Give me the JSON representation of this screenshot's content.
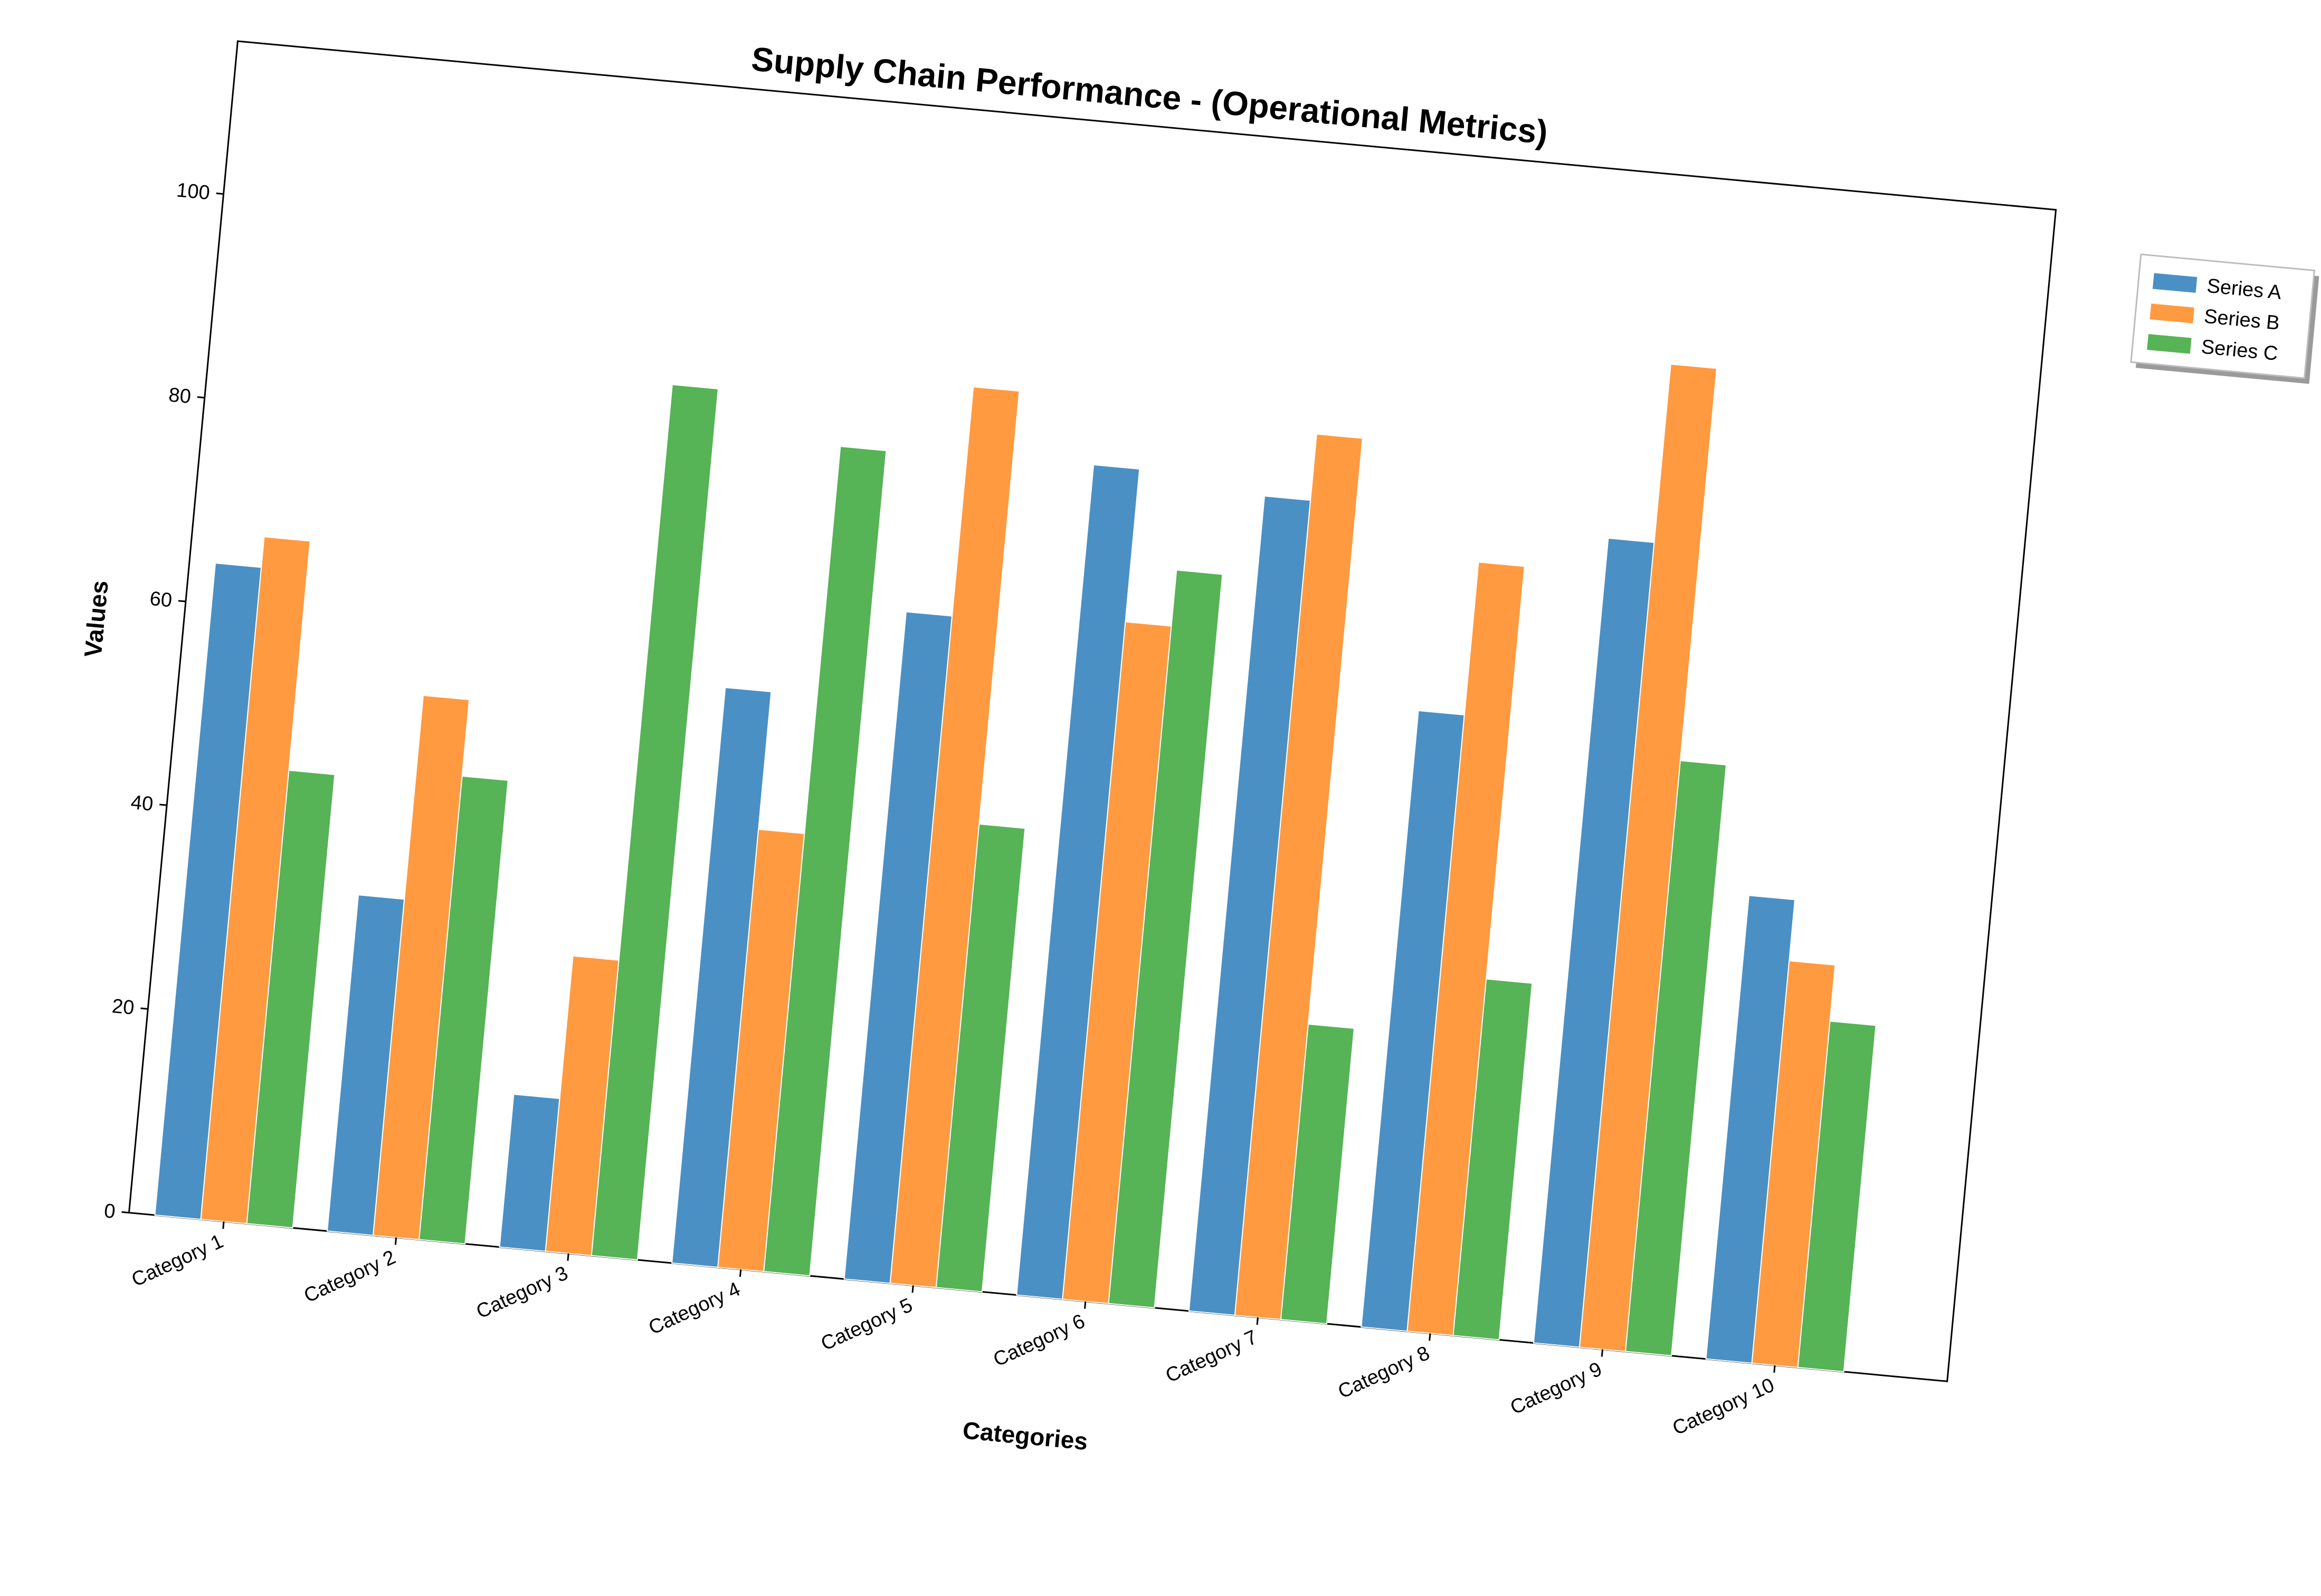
{
  "chart_data": {
    "type": "bar",
    "title": "Supply Chain Performance - (Operational Metrics)",
    "xlabel": "Categories",
    "ylabel": "Values",
    "ylim": [
      0,
      115
    ],
    "yticks": [
      0,
      20,
      40,
      60,
      80,
      100
    ],
    "categories": [
      "Category 1",
      "Category 2",
      "Category 3",
      "Category 4",
      "Category 5",
      "Category 6",
      "Category 7",
      "Category 8",
      "Category 9",
      "Category 10"
    ],
    "series": [
      {
        "name": "Series A",
        "color": "#4a90c4",
        "values": [
          64,
          33,
          15,
          56.5,
          65.5,
          81.5,
          80,
          60.5,
          79,
          45.5
        ]
      },
      {
        "name": "Series B",
        "color": "#ff9a40",
        "values": [
          67,
          53,
          29,
          43,
          88,
          66.5,
          86.5,
          75.5,
          96.5,
          39.5
        ]
      },
      {
        "name": "Series C",
        "color": "#56b356",
        "values": [
          44.5,
          45.5,
          85.5,
          81,
          45.5,
          72,
          29,
          35,
          58,
          34
        ]
      }
    ],
    "grid": false,
    "legend": "right-top"
  }
}
